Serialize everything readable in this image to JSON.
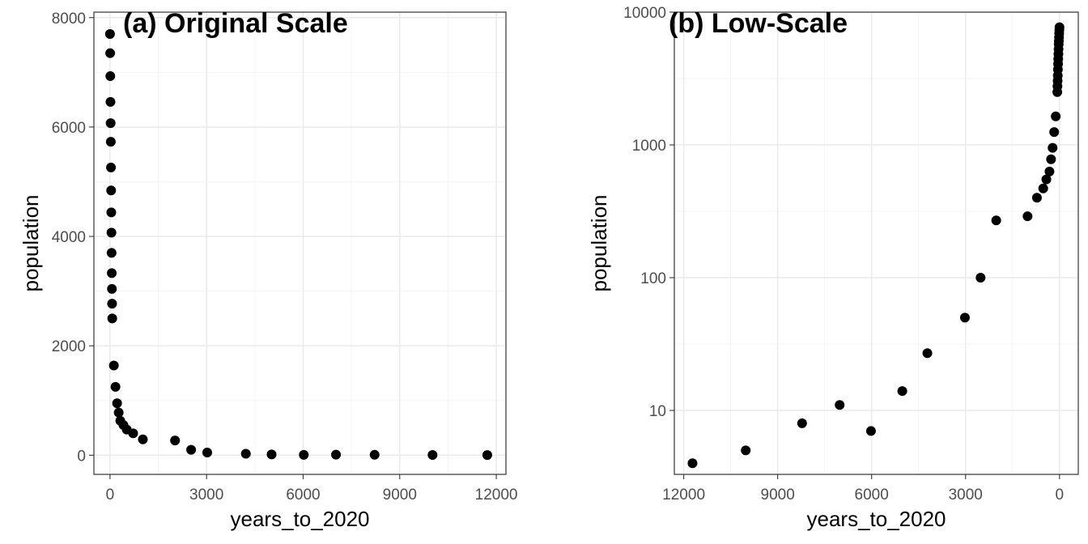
{
  "chart_data": [
    {
      "type": "scatter",
      "title": "(a) Original Scale",
      "xlabel": "years_to_2020",
      "ylabel": "population",
      "x_scale": "linear",
      "y_scale": "linear",
      "xlim": [
        -500,
        12300
      ],
      "ylim": [
        -350,
        8100
      ],
      "x_ticks": [
        0,
        3000,
        6000,
        9000,
        12000
      ],
      "x_tick_labels": [
        "0",
        "3000",
        "6000",
        "9000",
        "12000"
      ],
      "y_ticks": [
        0,
        2000,
        4000,
        6000,
        8000
      ],
      "y_tick_labels": [
        "0",
        "2000",
        "4000",
        "6000",
        "8000"
      ],
      "grid": true,
      "x": [
        0,
        5,
        10,
        15,
        20,
        25,
        30,
        35,
        40,
        45,
        50,
        55,
        60,
        65,
        70,
        120,
        170,
        220,
        270,
        320,
        420,
        520,
        720,
        1020,
        2020,
        2520,
        3020,
        4220,
        5020,
        6020,
        7020,
        8220,
        10020,
        11720
      ],
      "y": [
        7700,
        7350,
        6930,
        6460,
        6070,
        5730,
        5260,
        4840,
        4440,
        4070,
        3700,
        3330,
        3040,
        2770,
        2500,
        1640,
        1250,
        950,
        780,
        630,
        550,
        470,
        400,
        290,
        270,
        100,
        50,
        27,
        14,
        7,
        11,
        8,
        5,
        4
      ]
    },
    {
      "type": "scatter",
      "title": "(b) Low-Scale",
      "xlabel": "years_to_2020",
      "ylabel": "population",
      "x_scale": "linear",
      "x_reversed": true,
      "y_scale": "log10",
      "xlim": [
        12300,
        -600
      ],
      "ylim": [
        3.3,
        10000
      ],
      "x_ticks": [
        12000,
        9000,
        6000,
        3000,
        0
      ],
      "x_tick_labels": [
        "12000",
        "9000",
        "6000",
        "3000",
        "0"
      ],
      "y_ticks": [
        10,
        100,
        1000,
        10000
      ],
      "y_tick_labels": [
        "10",
        "100",
        "1000",
        "10000"
      ],
      "grid": true,
      "x": [
        0,
        5,
        10,
        15,
        20,
        25,
        30,
        35,
        40,
        45,
        50,
        55,
        60,
        65,
        70,
        120,
        170,
        220,
        270,
        320,
        420,
        520,
        720,
        1020,
        2020,
        2520,
        3020,
        4220,
        5020,
        6020,
        7020,
        8220,
        10020,
        11720
      ],
      "y": [
        7700,
        7350,
        6930,
        6460,
        6070,
        5730,
        5260,
        4840,
        4440,
        4070,
        3700,
        3330,
        3040,
        2770,
        2500,
        1640,
        1250,
        950,
        780,
        630,
        550,
        470,
        400,
        290,
        270,
        100,
        50,
        27,
        14,
        7,
        11,
        8,
        5,
        4
      ]
    }
  ]
}
